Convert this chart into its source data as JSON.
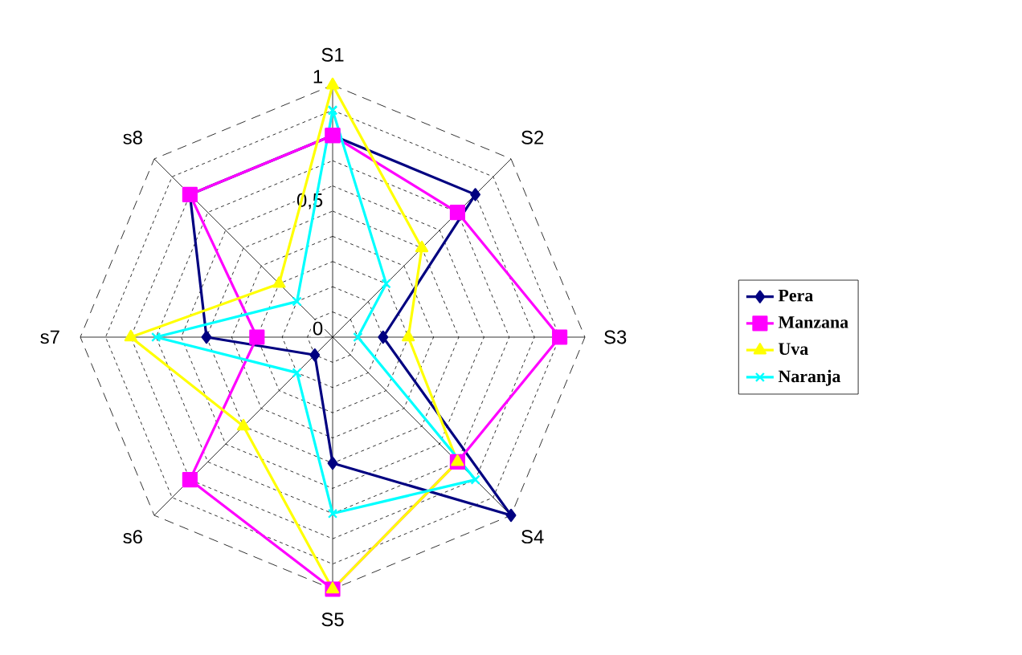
{
  "chart_data": {
    "type": "radar",
    "categories": [
      "S1",
      "S2",
      "S3",
      "S4",
      "S5",
      "s6",
      "s7",
      "s8"
    ],
    "ylim": [
      0,
      1
    ],
    "yticks": [
      0,
      {
        "value": 0.5,
        "label": "0,5"
      },
      1
    ],
    "grid": true,
    "legend": "right",
    "line_style": "solid",
    "series": [
      {
        "name": "Pera",
        "color": "#000080",
        "marker": "diamond",
        "values": [
          0.8,
          0.8,
          0.2,
          1.0,
          0.5,
          0.1,
          0.5,
          0.8
        ]
      },
      {
        "name": "Manzana",
        "color": "#ff00ff",
        "marker": "square",
        "values": [
          0.8,
          0.7,
          0.9,
          0.7,
          1.0,
          0.8,
          0.3,
          0.8
        ]
      },
      {
        "name": "Uva",
        "color": "#ffff00",
        "marker": "triangle",
        "values": [
          1.0,
          0.5,
          0.3,
          0.7,
          1.0,
          0.5,
          0.8,
          0.3
        ]
      },
      {
        "name": "Naranja",
        "color": "#00ffff",
        "marker": "cross",
        "values": [
          0.9,
          0.3,
          0.1,
          0.8,
          0.7,
          0.2,
          0.7,
          0.2
        ]
      }
    ]
  }
}
